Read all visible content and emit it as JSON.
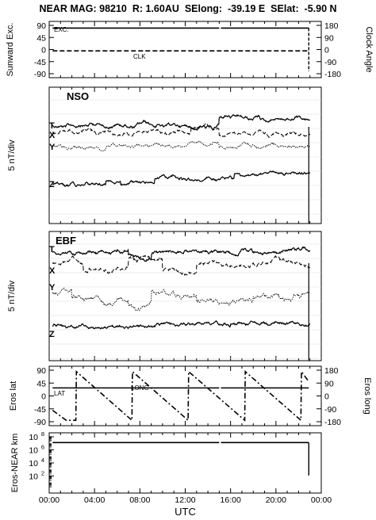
{
  "header": {
    "title": "NEAR MAG: 98210  R: 1.60AU  SElong:  -39.19 E  SElat:  -5.90 N"
  },
  "x_axis": {
    "label": "UTC",
    "ticks": [
      "00:00",
      "04:00",
      "08:00",
      "12:00",
      "16:00",
      "20:00",
      "00:00"
    ]
  },
  "chart_data": [
    {
      "type": "line",
      "panel": "sunward",
      "ylabel": "Sunward Exc.",
      "ylabel_right": "Clock Angle",
      "yticks": [
        "90",
        "45",
        "0",
        "-45",
        "-90"
      ],
      "yticks_right": [
        "180",
        "90",
        "0",
        "-90",
        "-180"
      ],
      "ylim": [
        -90,
        90
      ],
      "ylim_right": [
        -180,
        180
      ],
      "series": [
        {
          "name": "EXC.",
          "style": "solid",
          "x_hours": [
            0.3,
            15.0,
            15.15,
            22.9
          ],
          "values": [
            80,
            80,
            80,
            80
          ]
        },
        {
          "name": "CLK",
          "style": "dashed",
          "x_hours": [
            0.3,
            22.9
          ],
          "values": [
            -10,
            -10
          ],
          "axis": "right"
        }
      ]
    },
    {
      "type": "line",
      "panel": "nso",
      "title": "NSO",
      "ylabel": "5 nT/div",
      "series": [
        {
          "name": "T",
          "style": "solid"
        },
        {
          "name": "X",
          "style": "dashed"
        },
        {
          "name": "Y",
          "style": "dotted"
        },
        {
          "name": "Z",
          "style": "solid"
        }
      ]
    },
    {
      "type": "line",
      "panel": "ebf",
      "title": "EBF",
      "ylabel": "5 nT/div",
      "series": [
        {
          "name": "T",
          "style": "solid"
        },
        {
          "name": "X",
          "style": "dashed"
        },
        {
          "name": "Y",
          "style": "dotted"
        },
        {
          "name": "Z",
          "style": "solid"
        }
      ]
    },
    {
      "type": "line",
      "panel": "eros",
      "ylabel": "Eros lat",
      "ylabel_right": "Eros long",
      "yticks": [
        "90",
        "45",
        "0",
        "-45",
        "-90"
      ],
      "yticks_right": [
        "180",
        "90",
        "0",
        "-90",
        "-180"
      ],
      "ylim": [
        -90,
        90
      ],
      "ylim_right": [
        -180,
        180
      ],
      "series": [
        {
          "name": "LAT",
          "style": "solid",
          "x_hours": [
            0.3,
            15.0,
            15.15,
            22.9
          ],
          "values": [
            28,
            28,
            28,
            28
          ]
        },
        {
          "name": "LONG",
          "style": "dashdot",
          "axis": "right",
          "x_hours": [
            0.3,
            1.5,
            2.35,
            2.4,
            7.3,
            7.35,
            12.25,
            12.3,
            17.25,
            17.3,
            22.2,
            22.25,
            22.9
          ],
          "values": [
            -100,
            -170,
            -170,
            170,
            -170,
            170,
            -170,
            170,
            -170,
            170,
            -170,
            170,
            100
          ]
        }
      ]
    },
    {
      "type": "line",
      "panel": "distance",
      "ylabel": "Eros-NEAR km",
      "yscale": "log",
      "yticks": [
        "10^8",
        "10^6",
        "10^4",
        "10^2"
      ],
      "ylim": [
        1,
        100000000
      ],
      "series": [
        {
          "name": "Eros-NEAR distance",
          "style": "solid",
          "x_hours": [
            0.3,
            15.0,
            15.15,
            22.9
          ],
          "values": [
            13000000,
            13000000,
            13000000,
            13000000
          ]
        }
      ]
    }
  ]
}
